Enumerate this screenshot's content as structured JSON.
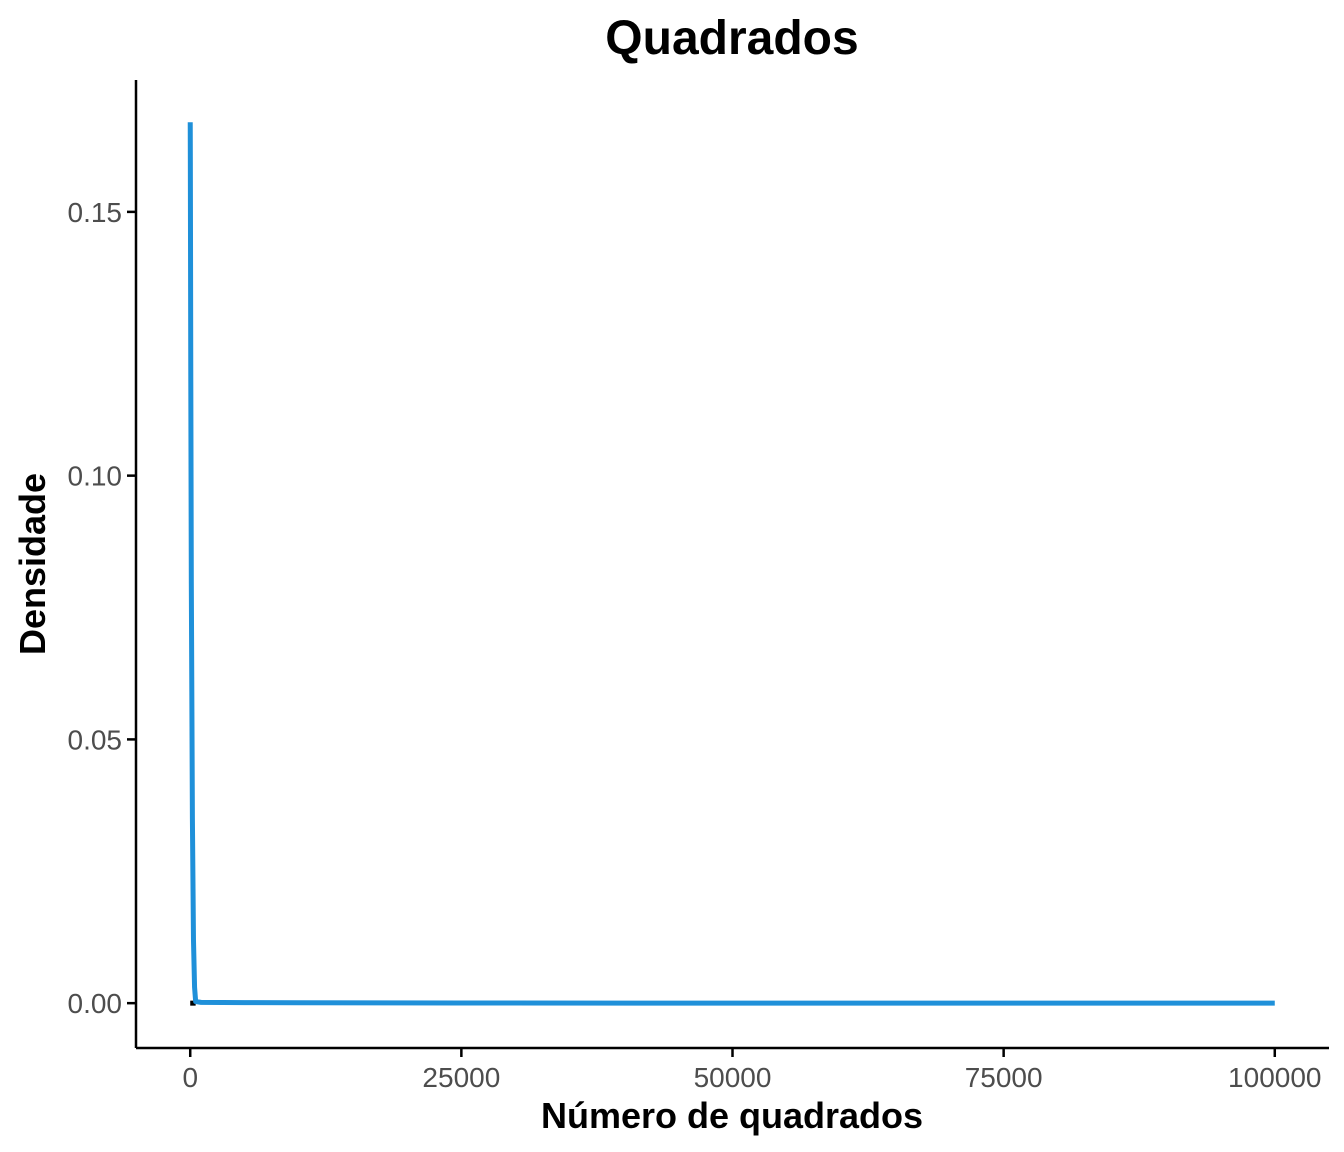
{
  "chart_data": {
    "type": "line",
    "title": "Quadrados",
    "xlabel": "Número de quadrados",
    "ylabel": "Densidade",
    "xlim": [
      -5000,
      105000
    ],
    "ylim": [
      -0.0085,
      0.175
    ],
    "xticks": [
      0,
      25000,
      50000,
      75000,
      100000
    ],
    "xtick_labels": [
      "0",
      "25000",
      "50000",
      "75000",
      "100000"
    ],
    "yticks": [
      0,
      0.05,
      0.1,
      0.15
    ],
    "ytick_labels": [
      "0.00",
      "0.05",
      "0.10",
      "0.15"
    ],
    "grid": false,
    "legend": "none",
    "series": [
      {
        "color": "#1f90d9",
        "x": [
          0,
          10,
          50,
          100,
          200,
          300,
          400,
          500,
          1000,
          5000,
          10000,
          25000,
          50000,
          75000,
          100000
        ],
        "y": [
          0.167,
          0.16,
          0.12,
          0.08,
          0.035,
          0.012,
          0.003,
          0.0003,
          0.00015,
          0.0001,
          8e-05,
          3e-05,
          1e-05,
          5e-06,
          0.0
        ]
      }
    ],
    "baseline": {
      "color": "#000000",
      "x": [
        0,
        500
      ],
      "y": [
        0,
        0
      ]
    }
  }
}
